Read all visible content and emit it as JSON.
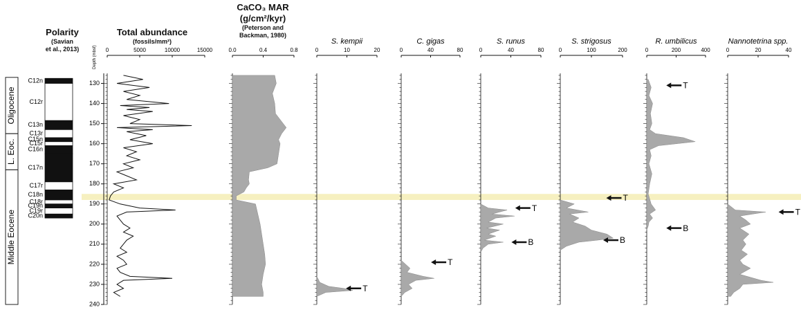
{
  "header": {
    "polarity_title": "Polarity",
    "polarity_sub_1": "(Savian",
    "polarity_sub_2": "et al., 2013)",
    "total_title": "Total abundance",
    "total_sub": "(fossils/mm²)",
    "caco3_title_1": "CaCO₃ MAR",
    "caco3_title_2": "(g/cm²/kyr)",
    "caco3_sub_1": "(Peterson and",
    "caco3_sub_2": "Backman, 1980)"
  },
  "colors": {
    "band": "#f6f0c0",
    "fill": "#a9a9a9",
    "line": "#111111"
  },
  "chart_data": {
    "type": "area",
    "depth_axis": {
      "label": "Depth (mbsf)",
      "range": [
        125,
        240
      ],
      "ticks": [
        130,
        140,
        150,
        160,
        170,
        180,
        190,
        200,
        210,
        220,
        230,
        240
      ]
    },
    "highlight_band": [
      185,
      188
    ],
    "epochs": [
      {
        "name": "Oligocene",
        "range": [
          125,
          155
        ]
      },
      {
        "name": "L. Eoc.",
        "range": [
          155,
          173
        ]
      },
      {
        "name": "Middle Eocene",
        "range": [
          173,
          240
        ]
      }
    ],
    "polarity_chrons": [
      {
        "name": "C12n",
        "range": [
          127.5,
          130
        ],
        "normal": true
      },
      {
        "name": "C12r",
        "range": [
          130,
          148.5
        ],
        "normal": false
      },
      {
        "name": "C13n",
        "range": [
          148.5,
          153
        ],
        "normal": true
      },
      {
        "name": "C13r",
        "range": [
          153,
          157
        ],
        "normal": false
      },
      {
        "name": "C15n",
        "range": [
          157,
          159
        ],
        "normal": true
      },
      {
        "name": "C15r",
        "range": [
          159,
          161
        ],
        "normal": false
      },
      {
        "name": "C16n",
        "range": [
          161,
          165
        ],
        "normal": true
      },
      {
        "name": "C17n",
        "range": [
          165,
          179
        ],
        "normal": true
      },
      {
        "name": "C17r",
        "range": [
          179,
          183
        ],
        "normal": false
      },
      {
        "name": "C18n",
        "range": [
          183,
          188
        ],
        "normal": true
      },
      {
        "name": "C18r",
        "range": [
          188,
          190
        ],
        "normal": false
      },
      {
        "name": "C19n",
        "range": [
          190,
          192
        ],
        "normal": true
      },
      {
        "name": "C19r",
        "range": [
          192,
          195
        ],
        "normal": false
      },
      {
        "name": "C20n",
        "range": [
          195,
          197
        ],
        "normal": true
      }
    ],
    "panels": [
      {
        "title": "Total abundance",
        "style": "line",
        "xlim": [
          0,
          15000
        ],
        "xticks": [
          0,
          5000,
          10000,
          15000
        ],
        "depth": [
          126,
          128,
          130,
          132,
          134,
          136,
          138,
          140,
          141,
          142,
          143,
          144,
          146,
          148,
          150,
          151,
          152,
          153,
          154,
          156,
          158,
          160,
          162,
          164,
          166,
          168,
          170,
          172,
          174,
          176,
          178,
          180,
          182,
          184,
          186,
          188,
          190,
          192,
          193,
          194,
          196,
          198,
          200,
          202,
          204,
          206,
          208,
          210,
          212,
          214,
          216,
          218,
          220,
          222,
          224,
          226,
          227,
          228,
          230,
          232,
          234,
          236
        ],
        "values": [
          2500,
          5500,
          1500,
          6500,
          2500,
          5000,
          3000,
          9500,
          2000,
          6500,
          3000,
          7000,
          2500,
          5000,
          3500,
          13000,
          1500,
          7000,
          3000,
          6000,
          3500,
          7000,
          2500,
          4500,
          3000,
          5000,
          2500,
          4000,
          1500,
          3000,
          4500,
          1000,
          2500,
          1000,
          500,
          300,
          2000,
          5000,
          10500,
          3000,
          1500,
          2000,
          2500,
          3500,
          2500,
          4000,
          3000,
          2500,
          2000,
          3000,
          1500,
          2500,
          3000,
          1500,
          2000,
          3500,
          10000,
          2500,
          1500,
          2500,
          1000,
          2000
        ]
      },
      {
        "title": "CaCO₃ MAR",
        "style": "area",
        "xlim": [
          0,
          0.8
        ],
        "xticks": [
          0.0,
          0.4,
          0.8
        ],
        "depth": [
          126,
          130,
          135,
          140,
          145,
          148,
          150,
          152,
          155,
          158,
          160,
          165,
          170,
          172,
          174,
          178,
          180,
          182,
          184,
          186,
          188,
          190,
          195,
          200,
          205,
          210,
          215,
          220,
          225,
          230,
          234,
          236
        ],
        "values": [
          0.55,
          0.57,
          0.52,
          0.55,
          0.56,
          0.62,
          0.66,
          0.7,
          0.64,
          0.6,
          0.62,
          0.6,
          0.58,
          0.46,
          0.22,
          0.21,
          0.22,
          0.18,
          0.15,
          0.05,
          0.05,
          0.3,
          0.33,
          0.36,
          0.38,
          0.4,
          0.42,
          0.43,
          0.4,
          0.38,
          0.4,
          0.4
        ]
      },
      {
        "title": "S. kempii",
        "style": "area",
        "xlim": [
          0,
          20
        ],
        "xticks": [
          0,
          10,
          20
        ],
        "depth": [
          226,
          229,
          231,
          232,
          233,
          234,
          236
        ],
        "values": [
          0,
          1,
          4,
          9,
          12,
          3,
          0
        ],
        "markers": [
          {
            "label": "T",
            "depth": 232,
            "value": 12
          }
        ]
      },
      {
        "title": "C. gigas",
        "style": "area",
        "xlim": [
          0,
          80
        ],
        "xticks": [
          0,
          40,
          80
        ],
        "depth": [
          218,
          220,
          222,
          224,
          226,
          227,
          228,
          230,
          232,
          234,
          236
        ],
        "values": [
          0,
          6,
          12,
          8,
          30,
          45,
          20,
          10,
          15,
          5,
          0
        ],
        "markers": [
          {
            "label": "T",
            "depth": 219,
            "value": 50
          }
        ]
      },
      {
        "title": "S. runus",
        "style": "area",
        "xlim": [
          0,
          80
        ],
        "xticks": [
          0,
          40,
          80
        ],
        "depth": [
          190,
          192,
          193,
          195,
          196,
          197,
          199,
          200,
          202,
          203,
          205,
          206,
          208,
          209,
          210,
          212,
          214
        ],
        "values": [
          0,
          10,
          35,
          15,
          45,
          20,
          10,
          30,
          8,
          25,
          10,
          20,
          5,
          30,
          10,
          3,
          0
        ],
        "markers": [
          {
            "label": "T",
            "depth": 192,
            "value": 55
          },
          {
            "label": "B",
            "depth": 209,
            "value": 50
          }
        ]
      },
      {
        "title": "S. strigosus",
        "style": "area",
        "xlim": [
          0,
          200
        ],
        "xticks": [
          0,
          100,
          200
        ],
        "depth": [
          188,
          190,
          192,
          194,
          195,
          197,
          199,
          201,
          203,
          205,
          207,
          208,
          209,
          211,
          213
        ],
        "values": [
          0,
          45,
          20,
          90,
          30,
          60,
          40,
          80,
          100,
          150,
          170,
          120,
          60,
          20,
          0
        ],
        "markers": [
          {
            "label": "T",
            "depth": 187,
            "value": 170
          },
          {
            "label": "B",
            "depth": 208,
            "value": 160
          }
        ]
      },
      {
        "title": "R. umbilicus",
        "style": "area",
        "xlim": [
          0,
          400
        ],
        "xticks": [
          0,
          200,
          400
        ],
        "depth": [
          128,
          132,
          136,
          140,
          145,
          150,
          153,
          155,
          157,
          159,
          161,
          163,
          166,
          170,
          175,
          180,
          185,
          190,
          193,
          195,
          197,
          199,
          201,
          203
        ],
        "values": [
          10,
          30,
          15,
          40,
          25,
          35,
          20,
          60,
          250,
          330,
          80,
          20,
          30,
          15,
          35,
          20,
          10,
          30,
          60,
          20,
          40,
          15,
          10,
          0
        ],
        "markers": [
          {
            "label": "T",
            "depth": 131,
            "value": 180
          },
          {
            "label": "B",
            "depth": 202,
            "value": 180
          }
        ]
      },
      {
        "title": "Nannotetrina spp.",
        "style": "area",
        "xlim": [
          0,
          40
        ],
        "xticks": [
          0,
          20,
          40
        ],
        "depth": [
          190,
          193,
          194,
          196,
          198,
          200,
          202,
          205,
          208,
          210,
          213,
          215,
          218,
          220,
          222,
          225,
          228,
          229,
          230,
          232,
          234,
          236
        ],
        "values": [
          0,
          5,
          25,
          8,
          12,
          15,
          8,
          14,
          10,
          12,
          9,
          13,
          8,
          10,
          15,
          8,
          22,
          30,
          10,
          8,
          4,
          2
        ],
        "markers": [
          {
            "label": "T",
            "depth": 194,
            "value": 38
          }
        ]
      }
    ]
  }
}
